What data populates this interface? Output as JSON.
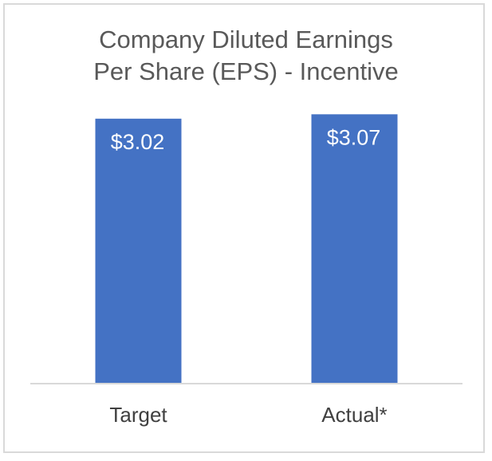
{
  "chart_data": {
    "type": "bar",
    "title_lines": [
      "Company Diluted Earnings",
      "Per Share (EPS) - Incentive"
    ],
    "categories": [
      "Target",
      "Actual*"
    ],
    "values": [
      3.02,
      3.07
    ],
    "data_labels": [
      "$3.02",
      "$3.07"
    ],
    "ylim": [
      0,
      3.1
    ],
    "grid": false,
    "bar_color": "#4472c4",
    "axis_color": "#d9d9d9"
  }
}
